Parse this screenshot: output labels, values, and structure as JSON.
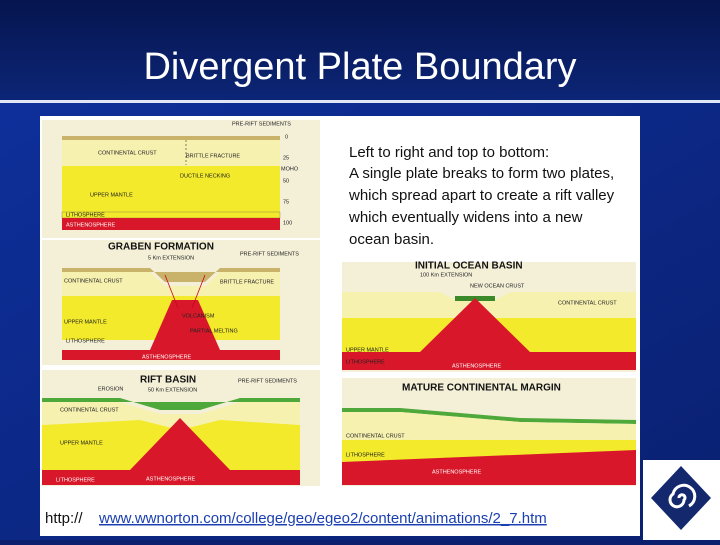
{
  "slide": {
    "title": "Divergent Plate Boundary",
    "description": [
      "Left to right and top to bottom:",
      "A single plate breaks to form two plates,",
      "which spread apart to create a rift valley",
      "which eventually widens into a new",
      "ocean basin."
    ],
    "link": {
      "prefix": "http://",
      "url": "www.wwnorton.com/college/geo/egeo2/content/animations/2_7.htm"
    },
    "panels": [
      {
        "labels": [
          "PRE-RIFT SEDIMENTS",
          "CONTINENTAL CRUST",
          "BRITTLE FRACTURE",
          "DUCTILE NECKING",
          "UPPER MANTLE",
          "LITHOSPHERE",
          "ASTHENOSPHERE",
          "0",
          "25",
          "MOHO",
          "50",
          "75",
          "100"
        ]
      },
      {
        "title": "GRABEN FORMATION",
        "labels": [
          "5 Km EXTENSION",
          "PRE-RIFT SEDIMENTS",
          "CONTINENTAL CRUST",
          "BRITTLE FRACTURE",
          "VOLCANISM",
          "PARTIAL MELTING",
          "UPPER MANTLE",
          "LITHOSPHERE",
          "ASTHENOSPHERE"
        ]
      },
      {
        "title": "RIFT BASIN",
        "labels": [
          "50 Km EXTENSION",
          "EROSION",
          "PRE-RIFT SEDIMENTS",
          "CONTINENTAL CRUST",
          "UPPER MANTLE",
          "LITHOSPHERE",
          "ASTHENOSPHERE"
        ]
      },
      {
        "title": "INITIAL OCEAN BASIN",
        "labels": [
          "100 Km EXTENSION",
          "NEW OCEAN CRUST",
          "CONTINENTAL CRUST",
          "UPPER MANTLE",
          "LITHOSPHERE",
          "ASTHENOSPHERE"
        ]
      },
      {
        "title": "MATURE CONTINENTAL MARGIN",
        "labels": [
          "CONTINENTAL CRUST",
          "LITHOSPHERE",
          "ASTHENOSPHERE"
        ]
      }
    ]
  }
}
